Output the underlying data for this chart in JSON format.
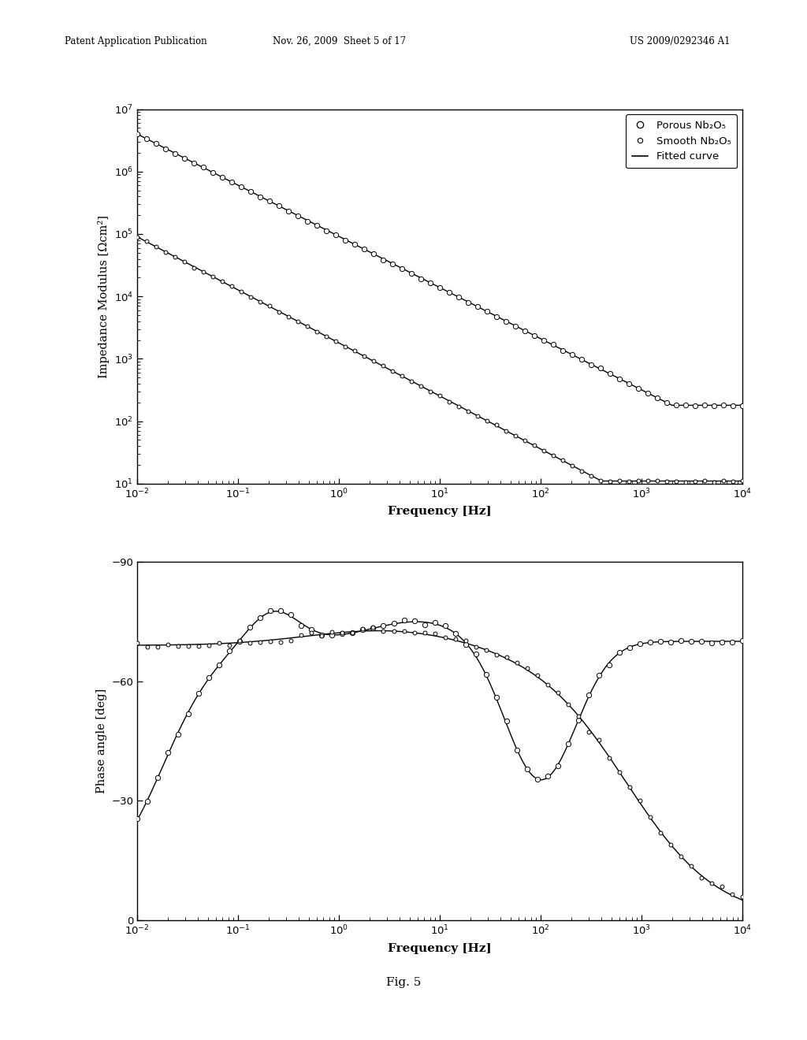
{
  "page_header_left": "Patent Application Publication",
  "page_header_mid": "Nov. 26, 2009  Sheet 5 of 17",
  "page_header_right": "US 2009/0292346 A1",
  "fig_label": "Fig. 5",
  "top_plot": {
    "ylabel": "Impedance Modulus [Ωcm²]",
    "xlabel": "Frequency [Hz]",
    "xlim": [
      -2,
      4
    ],
    "ylim": [
      1,
      7
    ]
  },
  "bottom_plot": {
    "ylabel": "Phase angle [deg]",
    "xlabel": "Frequency [Hz]",
    "xlim": [
      -2,
      4
    ],
    "ylim": [
      -90,
      0
    ],
    "yticks": [
      -90,
      -60,
      -30,
      0
    ]
  },
  "legend": {
    "porous_label": "Porous Nb₂O₅",
    "smooth_label": "Smooth Nb₂O₅",
    "fitted_label": "Fitted curve"
  }
}
